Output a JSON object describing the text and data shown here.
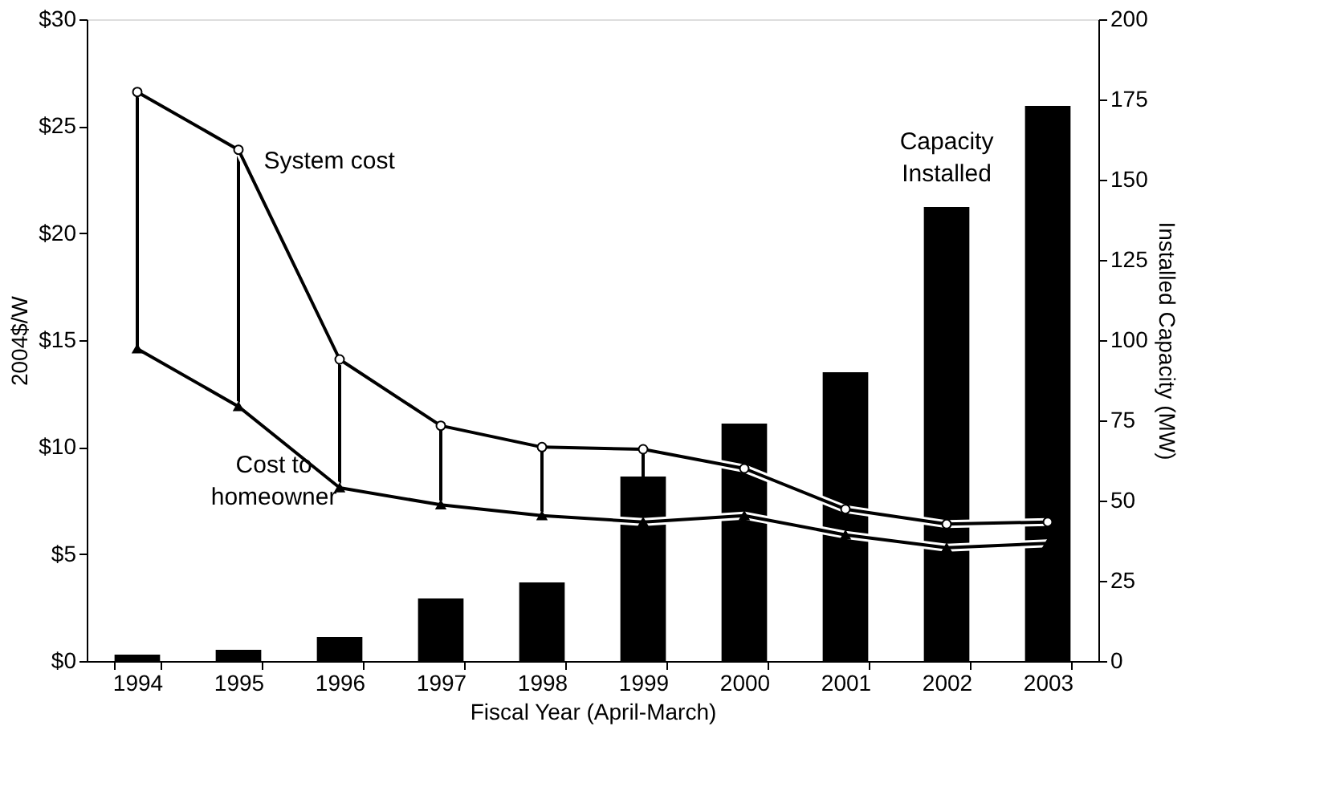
{
  "chart_data": {
    "type": "line",
    "xlabel": "Fiscal Year (April-March)",
    "ylabel": "2004$/W",
    "y2label": "Installed Capacity (MW)",
    "categories": [
      "1994",
      "1995",
      "1996",
      "1997",
      "1998",
      "1999",
      "2000",
      "2001",
      "2002",
      "2003"
    ],
    "series": [
      {
        "name": "Capacity Installed",
        "type": "bar",
        "axis": "y2",
        "color": "#000000",
        "values": [
          2,
          3.5,
          7.5,
          19.5,
          24.5,
          57.5,
          74,
          90,
          141.5,
          173
        ]
      },
      {
        "name": "System cost",
        "marker": "circle",
        "color": "#000000",
        "values": [
          26.6,
          23.9,
          14.1,
          11.0,
          10.0,
          9.9,
          9.0,
          7.1,
          6.4,
          6.5
        ],
        "errors": [
          [
            14.6,
            26.6
          ],
          [
            11.9,
            23.9
          ],
          [
            8.1,
            14.1
          ],
          [
            7.3,
            11.0
          ],
          [
            6.8,
            10.0
          ],
          [
            8.6,
            9.9
          ],
          null,
          null,
          null,
          null
        ]
      },
      {
        "name": "Cost to homeowner",
        "marker": "triangle",
        "color": "#000000",
        "values": [
          14.6,
          11.9,
          8.1,
          7.3,
          6.8,
          6.5,
          6.8,
          5.9,
          5.3,
          5.5
        ]
      }
    ],
    "ylim": [
      0,
      30
    ],
    "yticks": [
      {
        "value": 0,
        "label": "$0"
      },
      {
        "value": 5,
        "label": "$5"
      },
      {
        "value": 10,
        "label": "$10"
      },
      {
        "value": 15,
        "label": "$15"
      },
      {
        "value": 20,
        "label": "$20"
      },
      {
        "value": 25,
        "label": "$25"
      },
      {
        "value": 30,
        "label": "$30"
      }
    ],
    "y2lim": [
      0,
      200
    ],
    "y2ticks": [
      0,
      25,
      50,
      75,
      100,
      125,
      150,
      175,
      200
    ],
    "grid": false
  }
}
